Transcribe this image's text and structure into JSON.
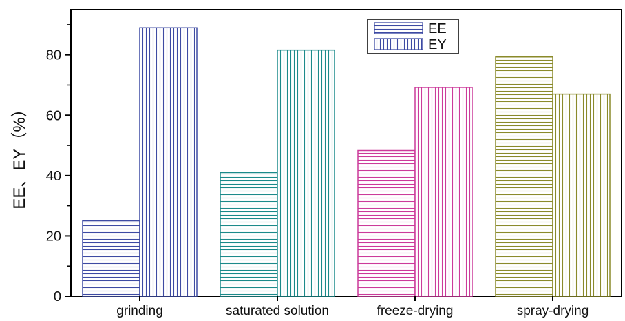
{
  "chart_data": {
    "type": "bar",
    "title": "",
    "xlabel": "",
    "ylabel": "EE、EY（%）",
    "ylim": [
      0,
      95
    ],
    "yticks": [
      0,
      20,
      40,
      60,
      80
    ],
    "grid": false,
    "legend_position": "top-center",
    "categories": [
      "grinding",
      "saturated solution",
      "freeze-drying",
      "spray-drying"
    ],
    "series": [
      {
        "name": "EE",
        "values": [
          25,
          41,
          48.3,
          79.3
        ],
        "pattern": "horizontal-hatch"
      },
      {
        "name": "EY",
        "values": [
          89,
          81.6,
          69.2,
          67
        ],
        "pattern": "vertical-hatch"
      }
    ],
    "category_colors": [
      "#3d4aa3",
      "#1a8a8a",
      "#cc3a9a",
      "#8a8a2a"
    ]
  }
}
